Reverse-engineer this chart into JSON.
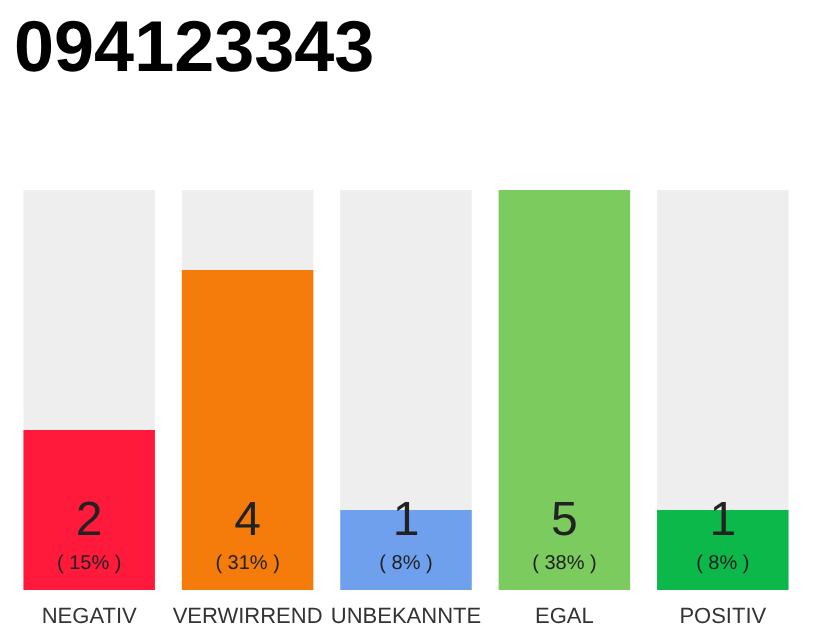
{
  "chart_data": {
    "type": "bar",
    "title": "094123343",
    "categories": [
      "NEGATIV",
      "VERWIRREND",
      "UNBEKANNTE",
      "EGAL",
      "POSITIV"
    ],
    "values": [
      2,
      4,
      1,
      5,
      1
    ],
    "colors": [
      "#ff1a3c",
      "#f57c0a",
      "#6ea0ee",
      "#7bcb5e",
      "#0cb84a"
    ],
    "value_labels": [
      "2\n( 15% )",
      "4\n( 31% )",
      "1\n( 8% )",
      "5\n( 38% )",
      "1\n( 8% )"
    ],
    "ylim": [
      0,
      5
    ],
    "tick_labels": "x"
  }
}
